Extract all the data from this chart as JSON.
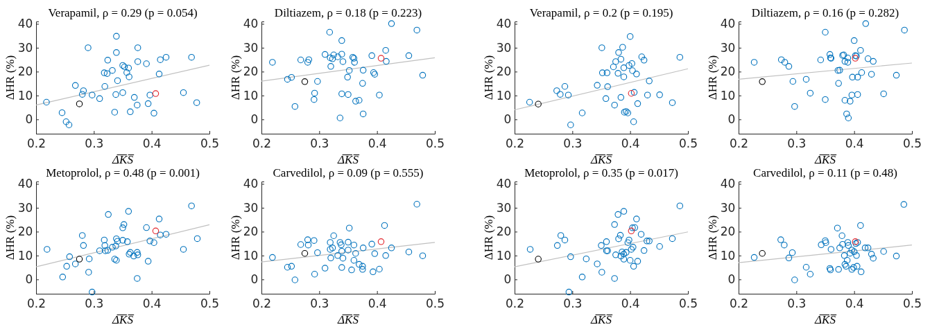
{
  "chart_data": [
    {
      "type": "scatter",
      "title": "Verapamil, ρ = 0.29 (p = 0.054)",
      "xlabel": "Δ̅K̅S̅",
      "ylabel": "ΔHR (%)",
      "xlim": [
        0.2,
        0.5
      ],
      "xticks": [
        0.2,
        0.3,
        0.4,
        0.5
      ],
      "ylim": [
        -6,
        41
      ],
      "yticks": [
        0,
        10,
        20,
        30,
        40
      ],
      "series": [
        {
          "marker": "circle",
          "color": "#0072bd",
          "x": [
            0.218,
            0.245,
            0.252,
            0.257,
            0.268,
            0.28,
            0.282,
            0.29,
            0.297,
            0.31,
            0.318,
            0.319,
            0.323,
            0.324,
            0.332,
            0.336,
            0.338,
            0.339,
            0.339,
            0.341,
            0.35,
            0.35,
            0.353,
            0.357,
            0.36,
            0.361,
            0.363,
            0.37,
            0.375,
            0.376,
            0.376,
            0.391,
            0.394,
            0.397,
            0.404,
            0.413,
            0.415,
            0.425,
            0.455,
            0.469,
            0.478
          ],
          "values": [
            7.2,
            2.8,
            -1,
            -2.3,
            14.2,
            10.5,
            12,
            30,
            10.2,
            8.7,
            19.5,
            13.8,
            19.2,
            24.8,
            20.5,
            3,
            10.4,
            34.8,
            28,
            16.2,
            11.2,
            22.6,
            22,
            19.6,
            21.5,
            17.8,
            3.2,
            9.2,
            6,
            30,
            24.2,
            23.3,
            6.6,
            10.2,
            2.6,
            19,
            25,
            26,
            11.2,
            26,
            7
          ]
        },
        {
          "marker": "circle",
          "color": "#000000",
          "x": [
            0.275
          ],
          "values": [
            6.5
          ]
        },
        {
          "marker": "circle",
          "color": "#e3242b",
          "x": [
            0.407
          ],
          "values": [
            10.8
          ]
        },
        {
          "type": "line",
          "color": "#c0c0c0",
          "x": [
            0.2,
            0.5
          ],
          "values": [
            6,
            22.7
          ]
        }
      ]
    },
    {
      "type": "scatter",
      "title": "Diltiazem, ρ = 0.18 (p = 0.223)",
      "xlabel": "Δ̅K̅S̅",
      "ylabel": "ΔHR (%)",
      "xlim": [
        0.2,
        0.5
      ],
      "xticks": [
        0.2,
        0.3,
        0.4,
        0.5
      ],
      "ylim": [
        -6,
        41
      ],
      "yticks": [
        0,
        10,
        20,
        30,
        40
      ],
      "series": [
        {
          "marker": "circle",
          "color": "#0072bd",
          "x": [
            0.219,
            0.245,
            0.252,
            0.258,
            0.268,
            0.28,
            0.282,
            0.291,
            0.292,
            0.297,
            0.31,
            0.318,
            0.319,
            0.32,
            0.323,
            0.325,
            0.332,
            0.336,
            0.339,
            0.339,
            0.339,
            0.341,
            0.349,
            0.35,
            0.352,
            0.358,
            0.36,
            0.361,
            0.363,
            0.369,
            0.375,
            0.376,
            0.376,
            0.391,
            0.394,
            0.396,
            0.404,
            0.415,
            0.416,
            0.425,
            0.455,
            0.469,
            0.479
          ],
          "values": [
            23.9,
            16.8,
            17.6,
            5.4,
            24.9,
            23.9,
            25,
            8.3,
            11,
            15.9,
            27.2,
            36.5,
            25.8,
            22.2,
            25.4,
            27,
            26.2,
            0.6,
            27.3,
            33,
            10.7,
            24.2,
            17.7,
            10.4,
            20.5,
            26,
            25.6,
            23.9,
            7.6,
            8,
            15.1,
            2.3,
            20.6,
            26.7,
            19.6,
            18.9,
            10.2,
            28.9,
            24.3,
            40.1,
            26.7,
            37.4,
            18.5
          ]
        },
        {
          "marker": "circle",
          "color": "#000000",
          "x": [
            0.275
          ],
          "values": [
            15.8
          ]
        },
        {
          "marker": "circle",
          "color": "#e3242b",
          "x": [
            0.407
          ],
          "values": [
            25.6
          ]
        },
        {
          "type": "line",
          "color": "#c0c0c0",
          "x": [
            0.2,
            0.5
          ],
          "values": [
            16,
            25.8
          ]
        }
      ]
    },
    {
      "type": "scatter",
      "title": "Verapamil, ρ = 0.2 (p = 0.195)",
      "xlabel": "Δ̅K̅S̅",
      "ylabel": "ΔHR (%)",
      "xlim": [
        0.2,
        0.5
      ],
      "xticks": [
        0.2,
        0.3,
        0.4,
        0.5
      ],
      "ylim": [
        -6,
        41
      ],
      "yticks": [
        0,
        10,
        20,
        30,
        40
      ],
      "series": [
        {
          "marker": "circle",
          "color": "#0072bd",
          "x": [
            0.226,
            0.273,
            0.279,
            0.287,
            0.293,
            0.297,
            0.317,
            0.343,
            0.351,
            0.352,
            0.358,
            0.36,
            0.361,
            0.371,
            0.373,
            0.375,
            0.379,
            0.38,
            0.384,
            0.384,
            0.387,
            0.389,
            0.389,
            0.39,
            0.393,
            0.396,
            0.398,
            0.4,
            0.403,
            0.404,
            0.406,
            0.407,
            0.411,
            0.413,
            0.42,
            0.424,
            0.43,
            0.433,
            0.451,
            0.473,
            0.486
          ],
          "values": [
            7.2,
            12,
            10.5,
            13.8,
            10.2,
            -2.3,
            2.7,
            14.3,
            30,
            19.5,
            8.7,
            19.5,
            13.7,
            22,
            6,
            24.2,
            19.3,
            28,
            9.2,
            25.2,
            30.2,
            21.6,
            17.8,
            3,
            3.3,
            2.7,
            22.6,
            34.7,
            23.4,
            20.4,
            -1,
            11.3,
            19,
            6.6,
            26.2,
            24.8,
            10.2,
            16.1,
            10.3,
            7,
            26
          ]
        },
        {
          "marker": "circle",
          "color": "#000000",
          "x": [
            0.241
          ],
          "values": [
            6.4
          ]
        },
        {
          "marker": "circle",
          "color": "#e3242b",
          "x": [
            0.402
          ],
          "values": [
            10.9
          ]
        },
        {
          "type": "line",
          "color": "#c0c0c0",
          "x": [
            0.2,
            0.5
          ],
          "values": [
            4,
            21.2
          ]
        }
      ]
    },
    {
      "type": "scatter",
      "title": "Diltiazem, ρ = 0.16 (p = 0.282)",
      "xlabel": "Δ̅K̅S̅",
      "ylabel": "ΔHR (%)",
      "xlim": [
        0.2,
        0.5
      ],
      "xticks": [
        0.2,
        0.3,
        0.4,
        0.5
      ],
      "ylim": [
        -6,
        41
      ],
      "yticks": [
        0,
        10,
        20,
        30,
        40
      ],
      "series": [
        {
          "marker": "circle",
          "color": "#0072bd",
          "x": [
            0.227,
            0.274,
            0.28,
            0.287,
            0.294,
            0.297,
            0.317,
            0.324,
            0.342,
            0.35,
            0.35,
            0.358,
            0.359,
            0.36,
            0.372,
            0.373,
            0.375,
            0.38,
            0.382,
            0.384,
            0.384,
            0.387,
            0.389,
            0.389,
            0.39,
            0.393,
            0.396,
            0.397,
            0.4,
            0.402,
            0.404,
            0.406,
            0.406,
            0.411,
            0.413,
            0.42,
            0.424,
            0.43,
            0.433,
            0.451,
            0.473,
            0.487
          ],
          "values": [
            23.9,
            25,
            23.9,
            22.2,
            15.9,
            5.4,
            16.8,
            11,
            24.9,
            36.5,
            8.3,
            27.2,
            25.8,
            25.6,
            20.5,
            15.1,
            20.6,
            26.8,
            27,
            8,
            24.3,
            2.3,
            25.7,
            23.9,
            0.6,
            7.6,
            10.2,
            17.7,
            33,
            26.7,
            26.5,
            17.7,
            10.4,
            28.9,
            19.6,
            40.1,
            25.4,
            18.9,
            24.3,
            10.7,
            18.5,
            37.4
          ]
        },
        {
          "marker": "circle",
          "color": "#000000",
          "x": [
            0.241
          ],
          "values": [
            15.8
          ]
        },
        {
          "marker": "circle",
          "color": "#e3242b",
          "x": [
            0.402
          ],
          "values": [
            25.6
          ]
        },
        {
          "type": "line",
          "color": "#c0c0c0",
          "x": [
            0.2,
            0.5
          ],
          "values": [
            16.8,
            23.6
          ]
        }
      ]
    },
    {
      "type": "scatter",
      "title": "Metoprolol, ρ = 0.48 (p = 0.001)",
      "xlabel": "Δ̅K̅S̅",
      "ylabel": "ΔHR (%)",
      "xlim": [
        0.2,
        0.5
      ],
      "xticks": [
        0.2,
        0.3,
        0.4,
        0.5
      ],
      "ylim": [
        -6,
        41
      ],
      "yticks": [
        0,
        10,
        20,
        30,
        40
      ],
      "series": [
        {
          "marker": "circle",
          "color": "#0072bd",
          "x": [
            0.219,
            0.246,
            0.253,
            0.258,
            0.268,
            0.28,
            0.282,
            0.291,
            0.292,
            0.297,
            0.31,
            0.318,
            0.319,
            0.32,
            0.324,
            0.325,
            0.332,
            0.336,
            0.338,
            0.339,
            0.339,
            0.341,
            0.35,
            0.35,
            0.352,
            0.358,
            0.36,
            0.361,
            0.363,
            0.369,
            0.375,
            0.375,
            0.376,
            0.391,
            0.394,
            0.397,
            0.404,
            0.413,
            0.415,
            0.425,
            0.455,
            0.469,
            0.479
          ],
          "values": [
            12.6,
            1,
            5.5,
            9.5,
            6.5,
            18.4,
            14.2,
            3,
            8.6,
            -5.3,
            12,
            16.5,
            14.2,
            12,
            12.2,
            27.2,
            13.5,
            8.5,
            14,
            17,
            8,
            16,
            21.6,
            16.4,
            23,
            15.8,
            28.5,
            10.6,
            11.3,
            9.8,
            11.3,
            0.4,
            10.3,
            21.7,
            7.6,
            16.1,
            15.4,
            25.3,
            18.6,
            18.9,
            12.6,
            30.8,
            17.1
          ]
        },
        {
          "marker": "circle",
          "color": "#000000",
          "x": [
            0.275
          ],
          "values": [
            8.5
          ]
        },
        {
          "marker": "circle",
          "color": "#e3242b",
          "x": [
            0.407
          ],
          "values": [
            20.3
          ]
        },
        {
          "type": "line",
          "color": "#c0c0c0",
          "x": [
            0.2,
            0.5
          ],
          "values": [
            5.3,
            22.9
          ]
        }
      ]
    },
    {
      "type": "scatter",
      "title": "Carvedilol, ρ = 0.09 (p = 0.555)",
      "xlabel": "Δ̅K̅S̅",
      "ylabel": "ΔHR (%)",
      "xlim": [
        0.2,
        0.5
      ],
      "xticks": [
        0.2,
        0.3,
        0.4,
        0.5
      ],
      "ylim": [
        -6,
        41
      ],
      "yticks": [
        0,
        10,
        20,
        30,
        40
      ],
      "series": [
        {
          "marker": "circle",
          "color": "#0072bd",
          "x": [
            0.219,
            0.245,
            0.252,
            0.258,
            0.268,
            0.28,
            0.281,
            0.291,
            0.292,
            0.297,
            0.31,
            0.319,
            0.319,
            0.32,
            0.323,
            0.325,
            0.332,
            0.336,
            0.338,
            0.339,
            0.339,
            0.341,
            0.35,
            0.35,
            0.352,
            0.356,
            0.36,
            0.36,
            0.363,
            0.369,
            0.375,
            0.375,
            0.376,
            0.391,
            0.393,
            0.396,
            0.404,
            0.413,
            0.415,
            0.425,
            0.455,
            0.469,
            0.479
          ],
          "values": [
            9.2,
            5.1,
            5.5,
            -0.2,
            14.6,
            16.6,
            14.4,
            16.3,
            2.2,
            11.2,
            4.7,
            15.5,
            12.6,
            9,
            13.2,
            18.3,
            10,
            15.5,
            14.5,
            11.8,
            5,
            8.9,
            15.6,
            12.3,
            21.5,
            4,
            14.4,
            8,
            10.9,
            6.3,
            4.2,
            5.5,
            13.2,
            14.8,
            3.2,
            10.8,
            4.3,
            22.6,
            10,
            13.2,
            11.5,
            31.5,
            9.9
          ]
        },
        {
          "marker": "circle",
          "color": "#000000",
          "x": [
            0.275
          ],
          "values": [
            10.9
          ]
        },
        {
          "marker": "circle",
          "color": "#e3242b",
          "x": [
            0.407
          ],
          "values": [
            15.8
          ]
        },
        {
          "type": "line",
          "color": "#c0c0c0",
          "x": [
            0.2,
            0.5
          ],
          "values": [
            7.3,
            15.5
          ]
        }
      ]
    },
    {
      "type": "scatter",
      "title": "Metoprolol, ρ = 0.35 (p = 0.017)",
      "xlabel": "Δ̅K̅S̅",
      "ylabel": "ΔHR (%)",
      "xlim": [
        0.2,
        0.5
      ],
      "xticks": [
        0.2,
        0.3,
        0.4,
        0.5
      ],
      "ylim": [
        -6,
        41
      ],
      "yticks": [
        0,
        10,
        20,
        30,
        40
      ],
      "series": [
        {
          "marker": "circle",
          "color": "#0072bd",
          "x": [
            0.227,
            0.274,
            0.28,
            0.287,
            0.297,
            0.294,
            0.317,
            0.324,
            0.343,
            0.35,
            0.351,
            0.359,
            0.359,
            0.361,
            0.373,
            0.373,
            0.375,
            0.379,
            0.38,
            0.383,
            0.384,
            0.386,
            0.389,
            0.389,
            0.389,
            0.393,
            0.396,
            0.398,
            0.4,
            0.402,
            0.404,
            0.405,
            0.406,
            0.408,
            0.411,
            0.413,
            0.419,
            0.424,
            0.429,
            0.433,
            0.451,
            0.473,
            0.486
          ],
          "values": [
            12.6,
            14.2,
            18.4,
            16.5,
            9.5,
            -5.3,
            1,
            8.6,
            6.5,
            14.2,
            3,
            15.8,
            12,
            12,
            23,
            0.4,
            10.3,
            27.2,
            17,
            18.5,
            9.8,
            11.5,
            28.5,
            10.6,
            8.5,
            11.3,
            15.4,
            16.5,
            8,
            12.6,
            21.6,
            13.5,
            5.5,
            21.7,
            25.3,
            7.6,
            18.9,
            12.1,
            16.1,
            16.1,
            13.8,
            17.1,
            30.8
          ]
        },
        {
          "marker": "circle",
          "color": "#000000",
          "x": [
            0.241
          ],
          "values": [
            8.5
          ]
        },
        {
          "marker": "circle",
          "color": "#e3242b",
          "x": [
            0.402
          ],
          "values": [
            20.3
          ]
        },
        {
          "type": "line",
          "color": "#c0c0c0",
          "x": [
            0.2,
            0.5
          ],
          "values": [
            5.3,
            19.9
          ]
        }
      ]
    },
    {
      "type": "scatter",
      "title": "Carvedilol, ρ = 0.11 (p = 0.48)",
      "xlabel": "Δ̅K̅S̅",
      "ylabel": "ΔHR (%)",
      "xlim": [
        0.2,
        0.5
      ],
      "xticks": [
        0.2,
        0.3,
        0.4,
        0.5
      ],
      "ylim": [
        -6,
        41
      ],
      "yticks": [
        0,
        10,
        20,
        30,
        40
      ],
      "series": [
        {
          "marker": "circle",
          "color": "#0072bd",
          "x": [
            0.227,
            0.273,
            0.279,
            0.287,
            0.293,
            0.297,
            0.317,
            0.324,
            0.343,
            0.35,
            0.351,
            0.358,
            0.359,
            0.36,
            0.371,
            0.373,
            0.375,
            0.379,
            0.38,
            0.383,
            0.384,
            0.386,
            0.388,
            0.389,
            0.39,
            0.393,
            0.396,
            0.396,
            0.399,
            0.4,
            0.403,
            0.404,
            0.405,
            0.406,
            0.411,
            0.412,
            0.419,
            0.424,
            0.43,
            0.433,
            0.451,
            0.473,
            0.486
          ],
          "values": [
            9.2,
            16.6,
            14.4,
            9,
            11.2,
            -0.2,
            5.1,
            2.2,
            14.5,
            16.2,
            15.4,
            4.6,
            4,
            12.6,
            21.5,
            4.2,
            13.2,
            18.3,
            14.7,
            10,
            6.3,
            5.5,
            8,
            15.5,
            14.2,
            11,
            4.2,
            12.3,
            5,
            11.6,
            15,
            10,
            5.5,
            15.5,
            22.6,
            3.2,
            13.2,
            13.2,
            10.6,
            8.9,
            11.7,
            9.8,
            31.4
          ]
        },
        {
          "marker": "circle",
          "color": "#000000",
          "x": [
            0.241
          ],
          "values": [
            10.9
          ]
        },
        {
          "marker": "circle",
          "color": "#e3242b",
          "x": [
            0.402
          ],
          "values": [
            15.8
          ]
        },
        {
          "type": "line",
          "color": "#c0c0c0",
          "x": [
            0.2,
            0.5
          ],
          "values": [
            7,
            14.4
          ]
        }
      ]
    }
  ]
}
